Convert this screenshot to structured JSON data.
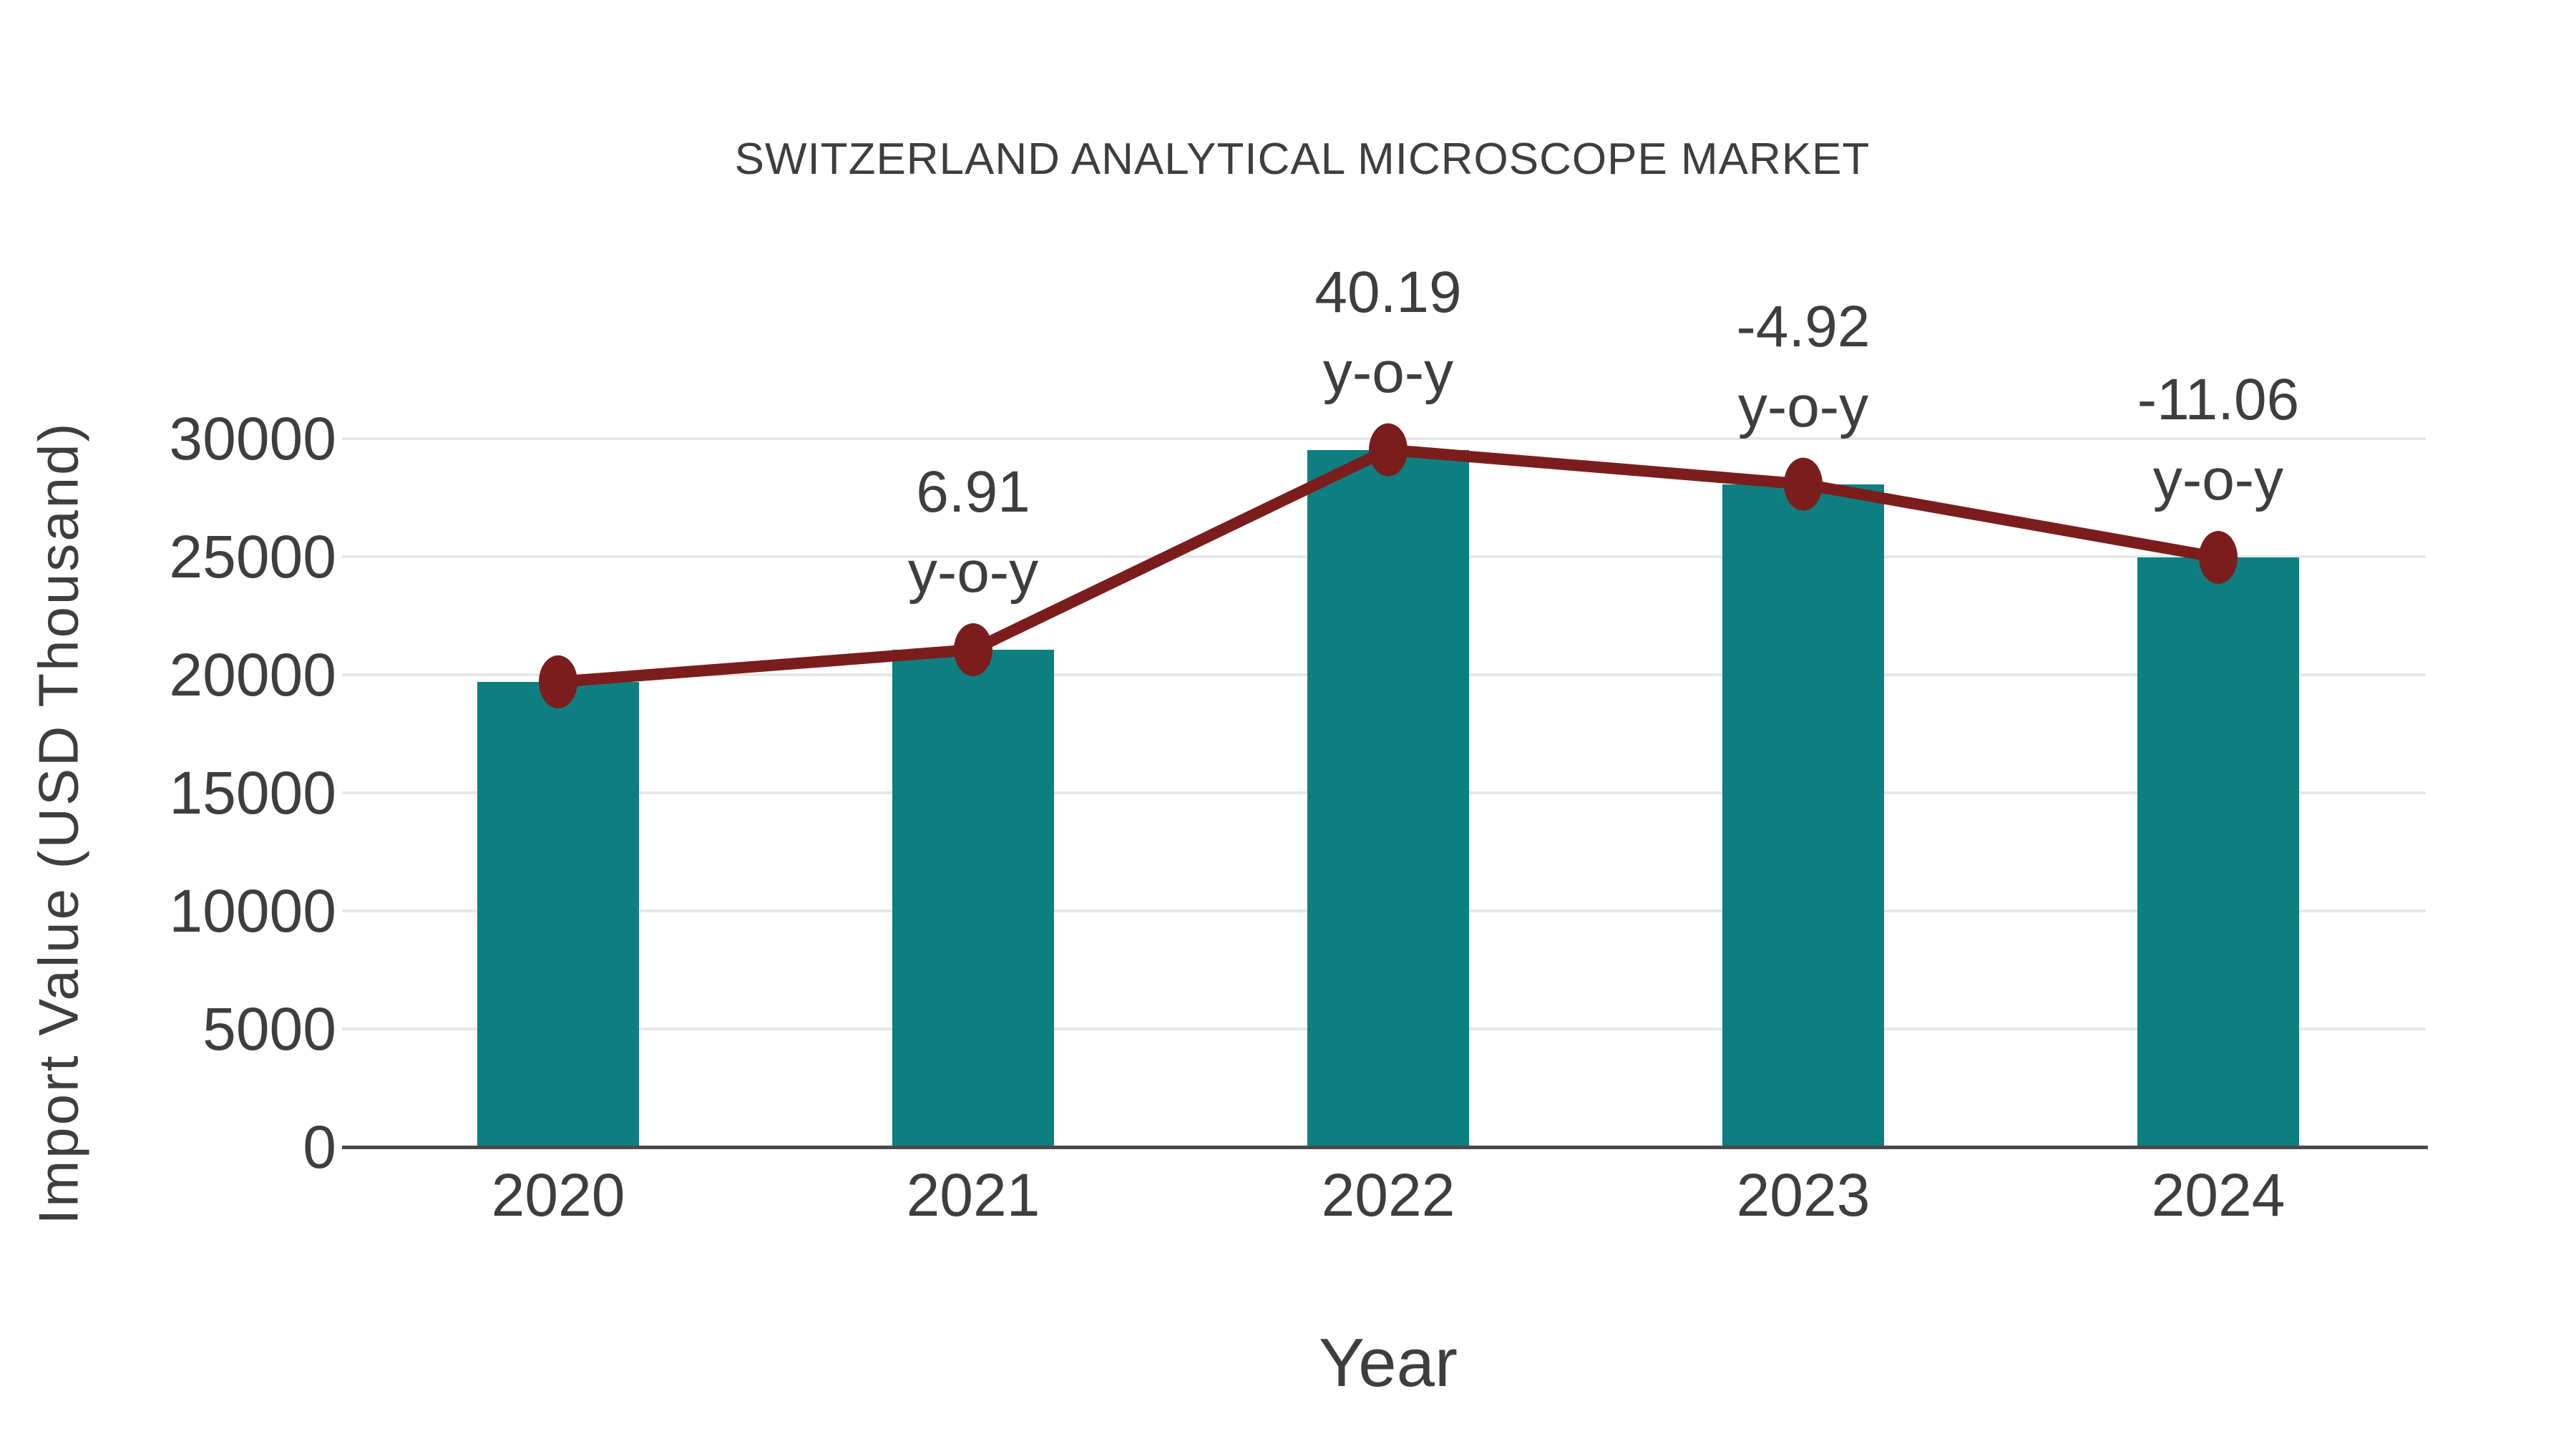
{
  "chart_data": {
    "type": "bar",
    "title": "SWITZERLAND ANALYTICAL MICROSCOPE MARKET",
    "xlabel": "Year",
    "ylabel": "Import Value (USD Thousand)",
    "categories": [
      "2020",
      "2021",
      "2022",
      "2023",
      "2024"
    ],
    "series": [
      {
        "name": "Import Value (USD Thousand)",
        "type": "bar",
        "values": [
          19700,
          21061,
          29526,
          28073,
          24968
        ]
      },
      {
        "name": "y-o-y growth (%)",
        "type": "line",
        "values": [
          null,
          6.91,
          40.19,
          -4.92,
          -11.06
        ]
      }
    ],
    "annotations": [
      {
        "category": "2021",
        "value": "6.91",
        "label": "y-o-y"
      },
      {
        "category": "2022",
        "value": "40.19",
        "label": "y-o-y"
      },
      {
        "category": "2023",
        "value": "-4.92",
        "label": "y-o-y"
      },
      {
        "category": "2024",
        "value": "-11.06",
        "label": "y-o-y"
      }
    ],
    "yticks": [
      0,
      5000,
      10000,
      15000,
      20000,
      25000,
      30000
    ],
    "ytick_labels": [
      "0",
      "5000",
      "10000",
      "15000",
      "20000",
      "25000",
      "30000"
    ],
    "ylim": [
      0,
      30000
    ],
    "grid": "horizontal",
    "legend": "none",
    "colors": {
      "bar": "#0d7f81",
      "line": "#7c1d1d",
      "marker": "#7c1d1d",
      "text": "#3e3e3e",
      "gridline": "#e7e7e7",
      "axis_line": "#4a4a4a",
      "background": "#ffffff"
    }
  }
}
